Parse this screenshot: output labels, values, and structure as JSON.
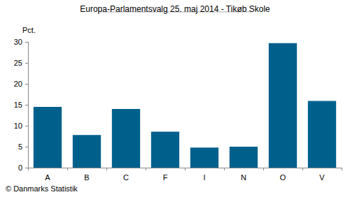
{
  "chart_data": {
    "type": "bar",
    "title": "Europa-Parlamentsvalg 25. maj 2014 - Tikøb Skole",
    "ylabel": "Pct.",
    "source": "© Danmarks Statistik",
    "categories": [
      "A",
      "B",
      "C",
      "F",
      "I",
      "N",
      "O",
      "V"
    ],
    "values": [
      14.5,
      7.8,
      14.0,
      8.6,
      4.8,
      5.0,
      29.7,
      15.9
    ],
    "color": "#00608c",
    "ylim": [
      0,
      30
    ],
    "yticks": [
      0,
      5,
      10,
      15,
      20,
      25,
      30
    ],
    "grid": false
  }
}
